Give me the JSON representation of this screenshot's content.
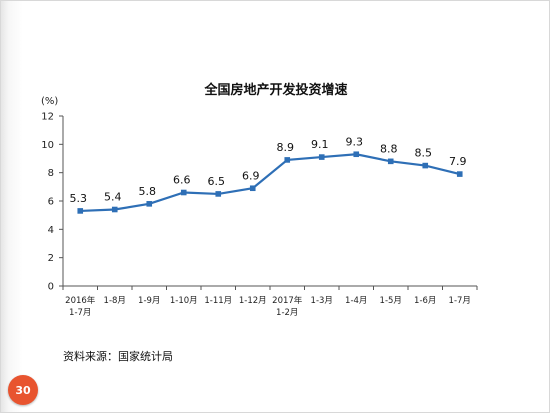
{
  "chart_data": {
    "type": "line",
    "title": "全国房地产开发投资增速",
    "unit_label": "(%)",
    "ylim": [
      0,
      12
    ],
    "yticks": [
      0,
      2,
      4,
      6,
      8,
      10,
      12
    ],
    "categories": [
      [
        "2016年",
        "1-7月"
      ],
      [
        "1-8月"
      ],
      [
        "1-9月"
      ],
      [
        "1-10月"
      ],
      [
        "1-11月"
      ],
      [
        "1-12月"
      ],
      [
        "2017年",
        "1-2月"
      ],
      [
        "1-3月"
      ],
      [
        "1-4月"
      ],
      [
        "1-5月"
      ],
      [
        "1-6月"
      ],
      [
        "1-7月"
      ]
    ],
    "series": [
      {
        "values": [
          5.3,
          5.4,
          5.8,
          6.6,
          6.5,
          6.9,
          8.9,
          9.1,
          9.3,
          8.8,
          8.5,
          7.9
        ],
        "color": "#2e6fb6"
      }
    ],
    "grid": false
  },
  "source_text": "资料来源：国家统计局",
  "page_number": "30"
}
